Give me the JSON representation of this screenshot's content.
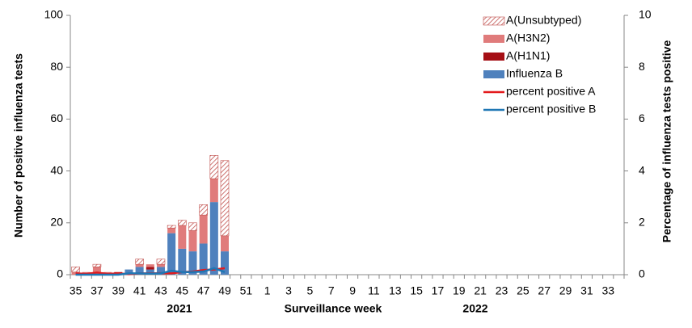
{
  "chart_data": {
    "type": "bar",
    "stacked": true,
    "categories": [
      "35",
      null,
      "37",
      null,
      "39",
      null,
      "41",
      null,
      "43",
      null,
      "45",
      null,
      "47",
      null,
      "49",
      null,
      "51",
      null,
      "1",
      null,
      "3",
      null,
      "5",
      null,
      "7",
      null,
      "9",
      null,
      "11",
      null,
      "13",
      null,
      "15",
      null,
      "17",
      null,
      "19",
      null,
      "21",
      null,
      "23",
      null,
      "25",
      null,
      "27",
      null,
      "29",
      null,
      "31",
      null,
      "33",
      null
    ],
    "xlabel": "Surveillance  week",
    "ylabel": "Number of positive influenza tests",
    "y2label": "Percentage of influenza tests positive",
    "annotations": [
      "2021",
      "2022"
    ],
    "ylim": [
      0,
      100
    ],
    "yticks": [
      0,
      20,
      40,
      60,
      80,
      100
    ],
    "y2lim": [
      0,
      10
    ],
    "y2ticks": [
      0,
      2,
      4,
      6,
      8,
      10
    ],
    "grid": false,
    "legend": "upper right",
    "series": [
      {
        "name": "Influenza B",
        "type": "bar",
        "color": "#4f81bd",
        "values": [
          0,
          0,
          0,
          0,
          0,
          2,
          3,
          2,
          3,
          16,
          10,
          9,
          12,
          28,
          9,
          null,
          null,
          null,
          null,
          null,
          null,
          null,
          null,
          null,
          null,
          null,
          null,
          null,
          null,
          null,
          null,
          null,
          null,
          null,
          null,
          null,
          null,
          null,
          null,
          null,
          null,
          null,
          null,
          null,
          null,
          null,
          null,
          null,
          null,
          null,
          null,
          null
        ]
      },
      {
        "name": "A(H1N1)",
        "type": "bar",
        "color": "#a50f15",
        "values": [
          0,
          0,
          0,
          0,
          1,
          0,
          0,
          1,
          0,
          0,
          0,
          0,
          0,
          0,
          0,
          null,
          null,
          null,
          null,
          null,
          null,
          null,
          null,
          null,
          null,
          null,
          null,
          null,
          null,
          null,
          null,
          null,
          null,
          null,
          null,
          null,
          null,
          null,
          null,
          null,
          null,
          null,
          null,
          null,
          null,
          null,
          null,
          null,
          null,
          null,
          null,
          null
        ]
      },
      {
        "name": "A(H3N2)",
        "type": "bar",
        "color": "#e07b7b",
        "values": [
          1,
          1,
          3,
          1,
          0,
          0,
          1,
          1,
          1,
          2,
          9,
          8,
          11,
          9,
          6,
          null,
          null,
          null,
          null,
          null,
          null,
          null,
          null,
          null,
          null,
          null,
          null,
          null,
          null,
          null,
          null,
          null,
          null,
          null,
          null,
          null,
          null,
          null,
          null,
          null,
          null,
          null,
          null,
          null,
          null,
          null,
          null,
          null,
          null,
          null,
          null,
          null
        ]
      },
      {
        "name": "A(Unsubtyped)",
        "type": "bar",
        "color": "#c0504d",
        "hatch": true,
        "values": [
          2,
          0,
          1,
          0,
          0,
          0,
          2,
          0,
          2,
          1,
          2,
          3,
          4,
          9,
          29,
          null,
          null,
          null,
          null,
          null,
          null,
          null,
          null,
          null,
          null,
          null,
          null,
          null,
          null,
          null,
          null,
          null,
          null,
          null,
          null,
          null,
          null,
          null,
          null,
          null,
          null,
          null,
          null,
          null,
          null,
          null,
          null,
          null,
          null,
          null,
          null,
          null
        ]
      },
      {
        "name": "percent positive A",
        "type": "line",
        "axis": "y2",
        "color": "#e31a1c",
        "values": [
          0.05,
          0.03,
          0.08,
          0.03,
          0.05,
          0.02,
          0.05,
          0.05,
          0.06,
          0.05,
          0.1,
          0.12,
          0.18,
          0.2,
          0.25,
          null,
          null,
          null,
          null,
          null,
          null,
          null,
          null,
          null,
          null,
          null,
          null,
          null,
          null,
          null,
          null,
          null,
          null,
          null,
          null,
          null,
          null,
          null,
          null,
          null,
          null,
          null,
          null,
          null,
          null,
          null,
          null,
          null,
          null,
          null,
          null,
          null
        ]
      },
      {
        "name": "percent positive B",
        "type": "line",
        "axis": "y2",
        "color": "#1f77b4",
        "values": [
          0,
          0,
          0,
          0,
          0,
          0.05,
          0.05,
          0.04,
          0.05,
          0.15,
          0.1,
          0.1,
          0.12,
          0.25,
          0.1,
          null,
          null,
          null,
          null,
          null,
          null,
          null,
          null,
          null,
          null,
          null,
          null,
          null,
          null,
          null,
          null,
          null,
          null,
          null,
          null,
          null,
          null,
          null,
          null,
          null,
          null,
          null,
          null,
          null,
          null,
          null,
          null,
          null,
          null,
          null,
          null,
          null
        ]
      }
    ]
  }
}
